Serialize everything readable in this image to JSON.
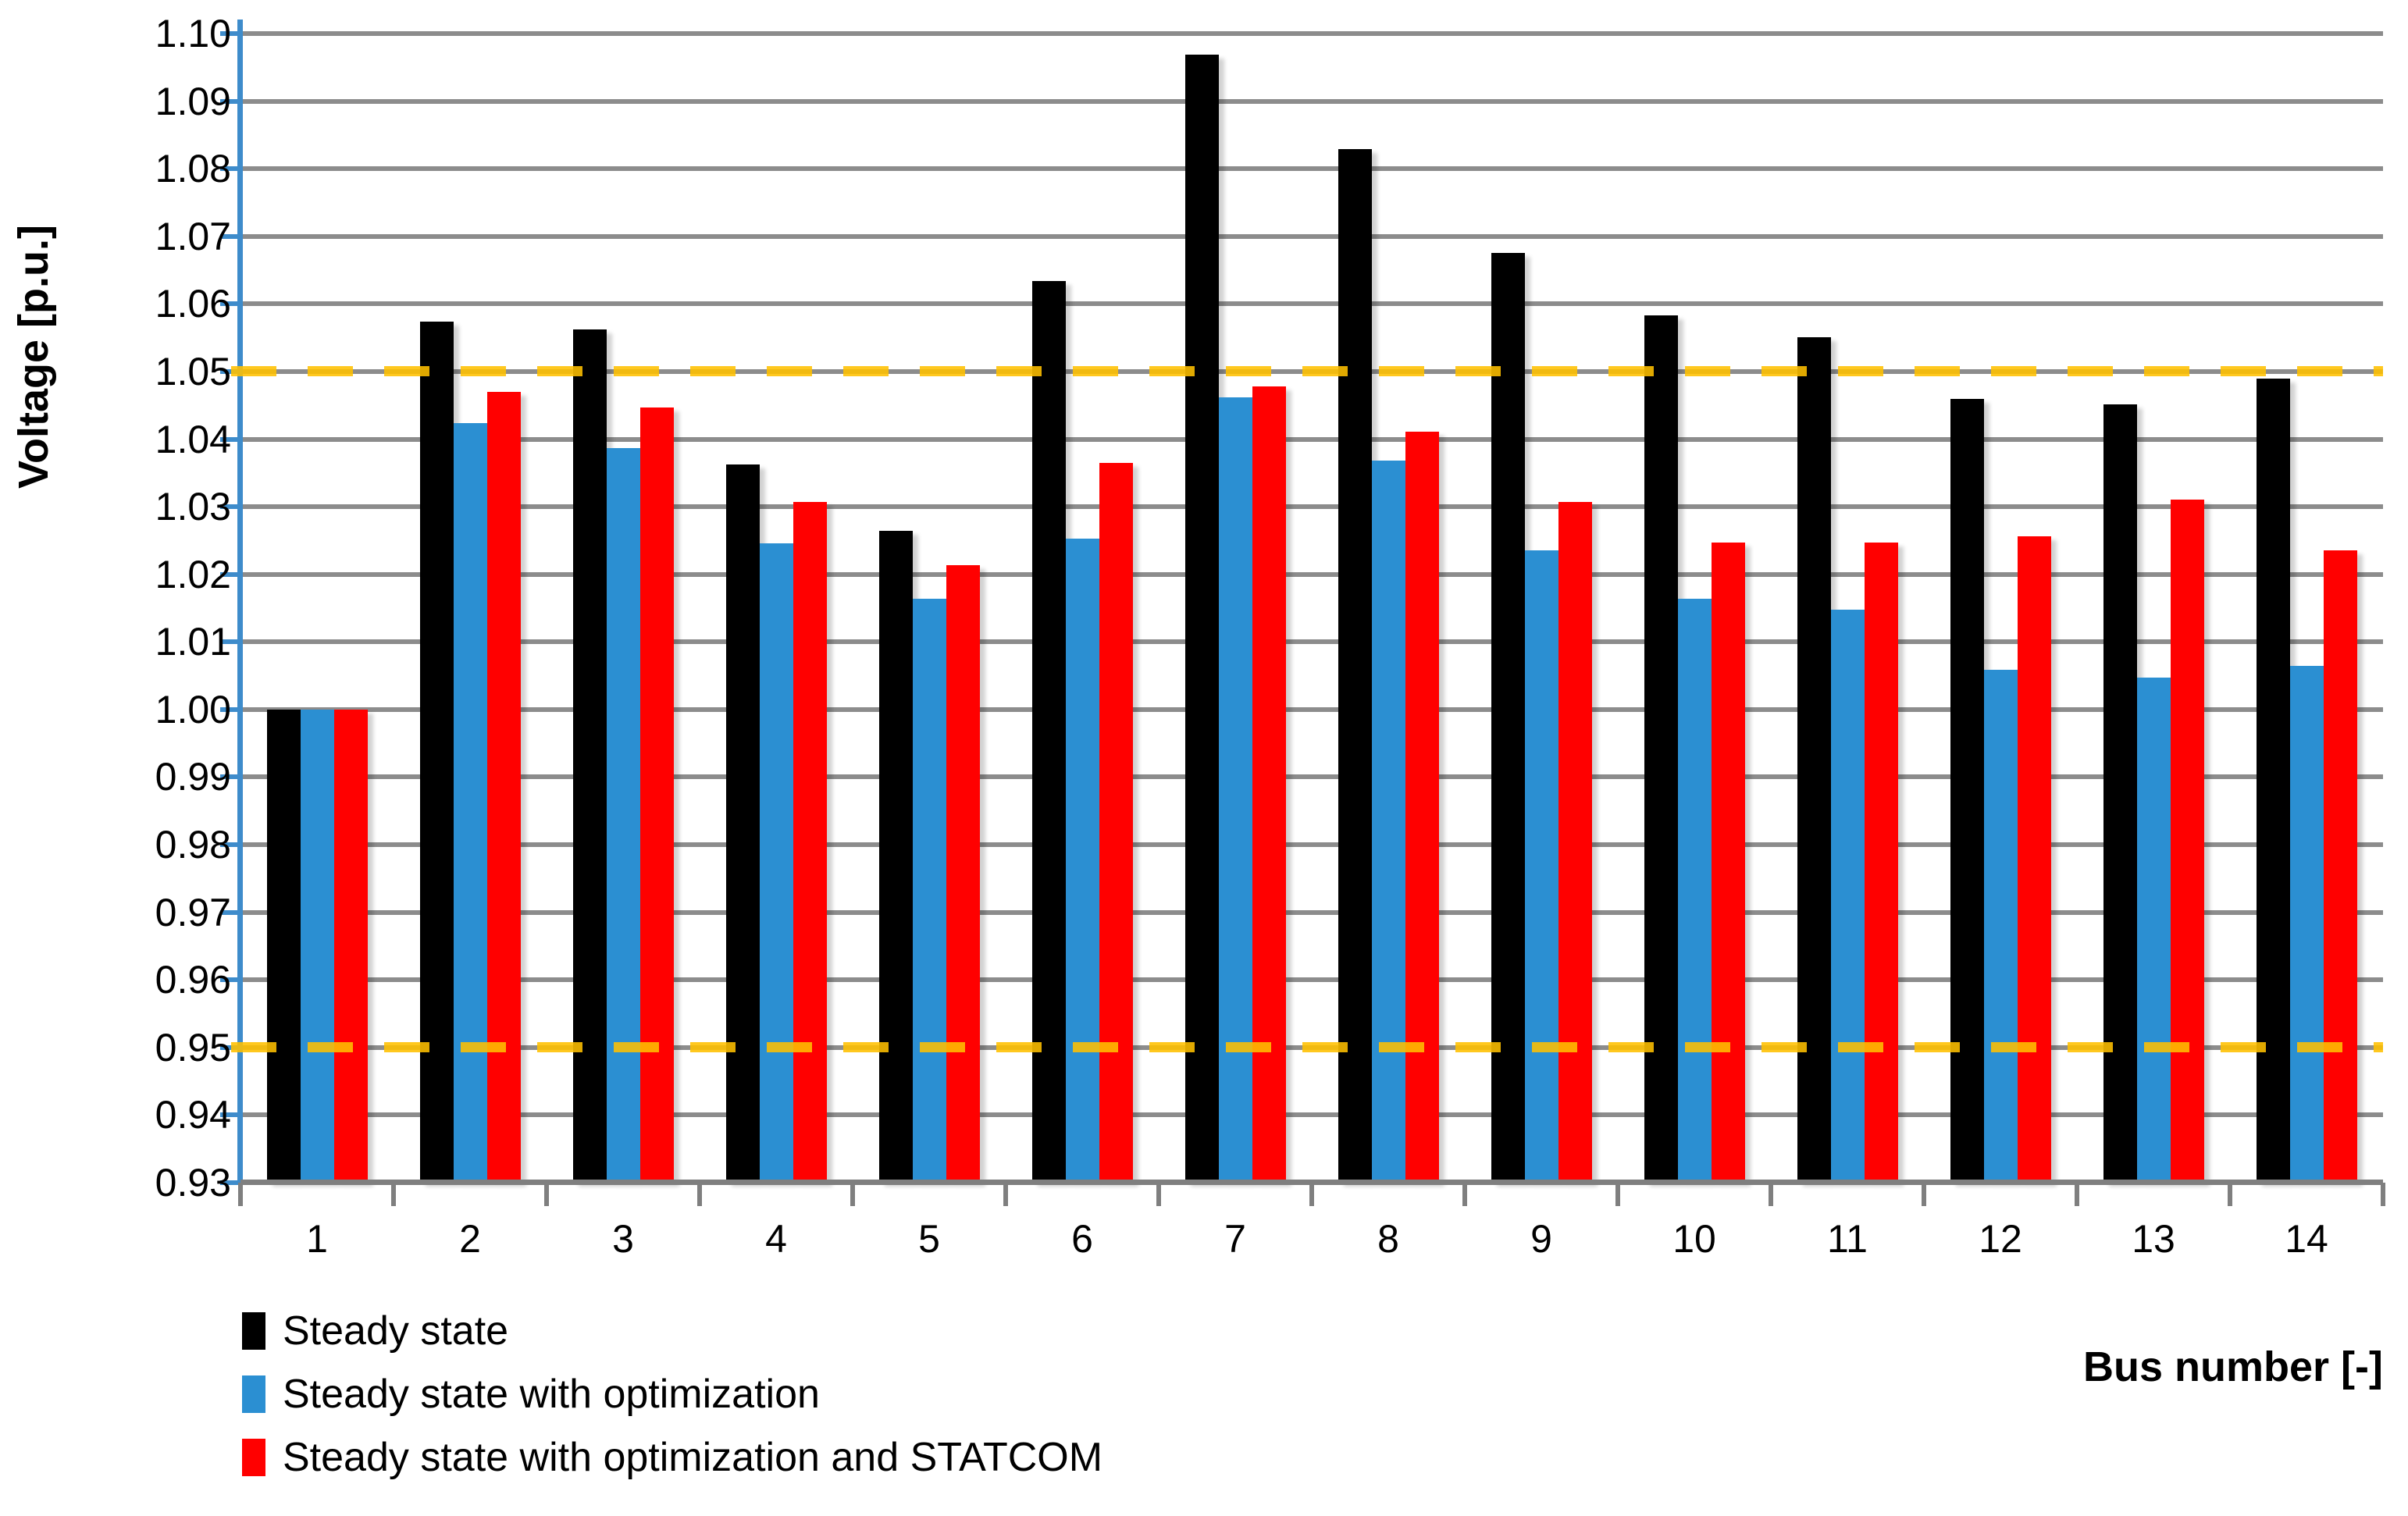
{
  "chart_data": {
    "type": "bar",
    "title": "",
    "xlabel": "Bus number [-]",
    "ylabel": "Voltage [p.u.]",
    "categories": [
      "1",
      "2",
      "3",
      "4",
      "5",
      "6",
      "7",
      "8",
      "9",
      "10",
      "11",
      "12",
      "13",
      "14"
    ],
    "series": [
      {
        "name": "Steady state",
        "color": "#000000",
        "values": [
          1.0,
          1.0574,
          1.0562,
          1.0362,
          1.0264,
          1.0634,
          1.0969,
          1.0829,
          1.0675,
          1.0583,
          1.0551,
          1.0459,
          1.0451,
          1.049
        ]
      },
      {
        "name": "Steady state with optimization",
        "color": "#2B8FD2",
        "values": [
          1.0,
          1.0424,
          1.0387,
          1.0246,
          1.0164,
          1.0253,
          1.0462,
          1.0368,
          1.0235,
          1.0164,
          1.0148,
          1.0059,
          1.0047,
          1.0065
        ]
      },
      {
        "name": "Steady state with optimization and STATCOM",
        "color": "#FF0000",
        "values": [
          1.0,
          1.047,
          1.0447,
          1.0307,
          1.0214,
          1.0365,
          1.0478,
          1.0411,
          1.0307,
          1.0247,
          1.0247,
          1.0256,
          1.0311,
          1.0235
        ]
      }
    ],
    "ylim": [
      0.93,
      1.1
    ],
    "ytick_step": 0.01,
    "ytick_labels": [
      "1.10",
      "1.09",
      "1.08",
      "1.07",
      "1.06",
      "1.05",
      "1.04",
      "1.03",
      "1.02",
      "1.01",
      "1.00",
      "0.99",
      "0.98",
      "0.97",
      "0.96",
      "0.95",
      "0.94",
      "0.93"
    ],
    "grid": true,
    "legend_position": "bottom-left",
    "limit_lines": [
      {
        "value": 1.05,
        "color": "#FFC000",
        "style": "dashed"
      },
      {
        "value": 0.95,
        "color": "#FFC000",
        "style": "dashed"
      }
    ]
  },
  "palette": {
    "background": "#FFFFFF",
    "gridline": "#8C8C8C",
    "y_axis": "#3E8CCB",
    "x_axis": "#7F7F7F",
    "text": "#000000",
    "limit_line": "#FFC000"
  }
}
